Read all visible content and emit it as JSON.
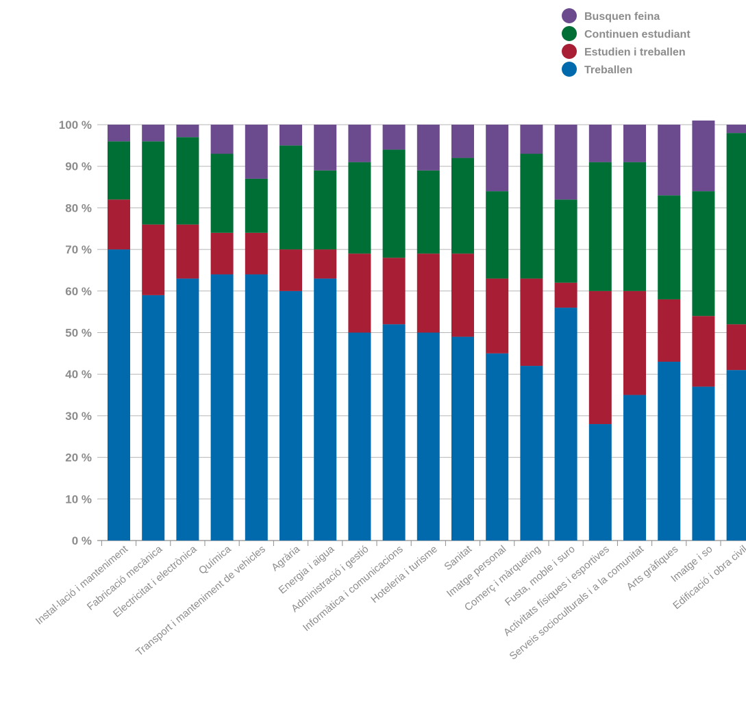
{
  "chart_data": {
    "type": "bar",
    "stacked": true,
    "orientation": "vertical",
    "y_unit_suffix": " %",
    "ylim": [
      0,
      100
    ],
    "yticks": [
      0,
      10,
      20,
      30,
      40,
      50,
      60,
      70,
      80,
      90,
      100
    ],
    "grid": true,
    "legend_position": "top-right",
    "categories": [
      "Instal·lació i manteniment",
      "Fabricació mecànica",
      "Electricitat i electrònica",
      "Química",
      "Transport i manteniment de vehicles",
      "Agrària",
      "Energia i aigua",
      "Administració i gestió",
      "Informàtica i comunicacions",
      "Hoteleria i turisme",
      "Sanitat",
      "Imatge personal",
      "Comerç i màrqueting",
      "Fusta, moble i suro",
      "Activitats físiques i esportives",
      "Serveis socioculturals i a la comunitat",
      "Arts gràfiques",
      "Imatge i so",
      "Edificació i obra civil"
    ],
    "series": [
      {
        "name": "Treballen",
        "color": "#006aad",
        "values": [
          70,
          59,
          63,
          64,
          64,
          60,
          63,
          50,
          52,
          50,
          49,
          45,
          42,
          56,
          28,
          35,
          43,
          37,
          41
        ]
      },
      {
        "name": "Estudien i treballen",
        "color": "#a71e35",
        "values": [
          12,
          17,
          13,
          10,
          10,
          10,
          7,
          19,
          16,
          19,
          20,
          18,
          21,
          6,
          32,
          25,
          15,
          17,
          11
        ]
      },
      {
        "name": "Continuen estudiant",
        "color": "#006f35",
        "values": [
          14,
          20,
          21,
          19,
          13,
          25,
          19,
          22,
          26,
          20,
          23,
          21,
          30,
          20,
          31,
          31,
          25,
          30,
          46
        ]
      },
      {
        "name": "Busquen feina",
        "color": "#6b4b8e",
        "values": [
          4,
          4,
          3,
          7,
          13,
          5,
          11,
          9,
          6,
          11,
          8,
          16,
          7,
          18,
          9,
          9,
          17,
          17,
          2
        ]
      }
    ],
    "legend_order": [
      "Busquen feina",
      "Continuen estudiant",
      "Estudien i treballen",
      "Treballen"
    ]
  }
}
